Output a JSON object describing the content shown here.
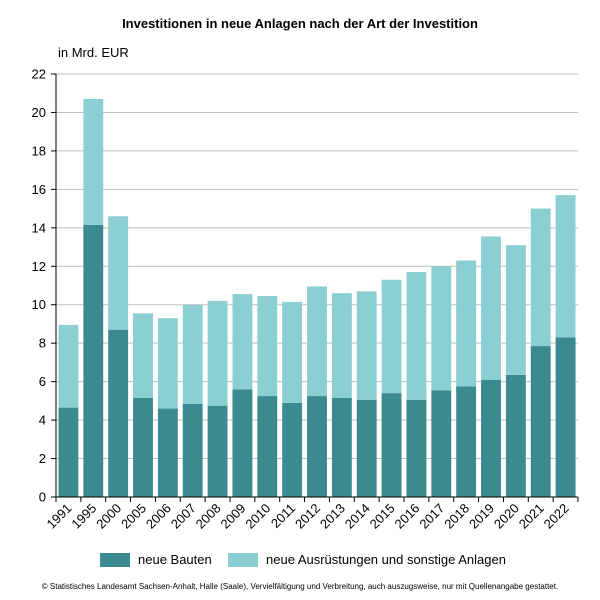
{
  "chart_data": {
    "type": "bar",
    "stacked": true,
    "title": "Investitionen in neue Anlagen nach der Art der Investition",
    "unit_label": "in Mrd. EUR",
    "categories": [
      "1991",
      "1995",
      "2000",
      "2005",
      "2006",
      "2007",
      "2008",
      "2009",
      "2010",
      "2011",
      "2012",
      "2013",
      "2014",
      "2015",
      "2016",
      "2017",
      "2018",
      "2019",
      "2020",
      "2021",
      "2022"
    ],
    "series": [
      {
        "name": "neue Bauten",
        "color": "#3a8a90",
        "values": [
          4.65,
          14.15,
          8.7,
          5.15,
          4.6,
          4.85,
          4.75,
          5.6,
          5.25,
          4.9,
          5.25,
          5.15,
          5.05,
          5.4,
          5.05,
          5.55,
          5.75,
          6.1,
          6.35,
          7.85,
          8.3
        ]
      },
      {
        "name": "neue Ausrüstungen und sonstige Anlagen",
        "color": "#8ccfd2",
        "values": [
          4.3,
          6.55,
          5.9,
          4.4,
          4.7,
          5.15,
          5.45,
          4.95,
          5.2,
          5.25,
          5.7,
          5.45,
          5.65,
          5.9,
          6.65,
          6.45,
          6.55,
          7.45,
          6.75,
          7.15,
          7.4
        ]
      }
    ],
    "yticks": [
      "0",
      "2",
      "4",
      "6",
      "8",
      "10",
      "12",
      "14",
      "16",
      "18",
      "20",
      "22"
    ],
    "ylim": [
      0,
      22
    ],
    "grid": true,
    "legend_position": "bottom"
  },
  "footer": "© Statistisches Landesamt Sachsen-Anhalt, Halle (Saale), Vervielfältigung und Verbreitung, auch auszugsweise, nur mit Quellenangabe gestattet."
}
